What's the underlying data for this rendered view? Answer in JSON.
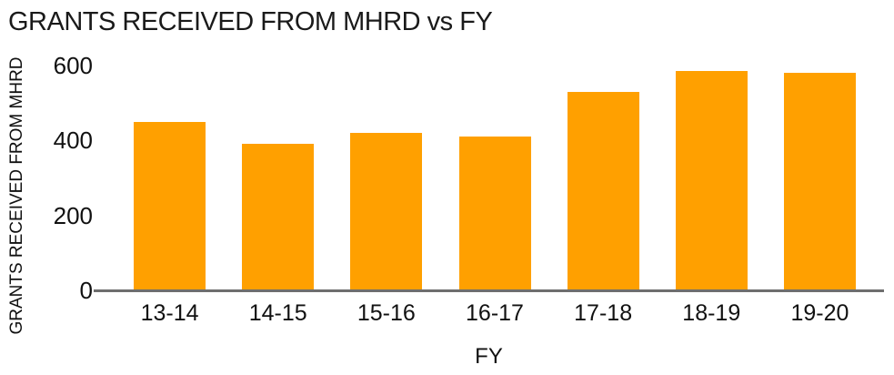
{
  "title": "GRANTS RECEIVED FROM MHRD vs FY",
  "colors": {
    "bar": "#FFA000",
    "axis_line": "#6E6E6E",
    "text": "#111111"
  },
  "chart_data": {
    "type": "bar",
    "title": "GRANTS RECEIVED FROM MHRD vs FY",
    "categories": [
      "13-14",
      "14-15",
      "15-16",
      "16-17",
      "17-18",
      "18-19",
      "19-20"
    ],
    "values": [
      450,
      390,
      420,
      410,
      530,
      585,
      580
    ],
    "xlabel": "FY",
    "ylabel": "GRANTS RECEIVED FROM MHRD",
    "ylim": [
      0,
      600
    ],
    "yticks": [
      0,
      200,
      400,
      600
    ],
    "grid": false,
    "legend": false,
    "bar_color": "#FFA000"
  }
}
